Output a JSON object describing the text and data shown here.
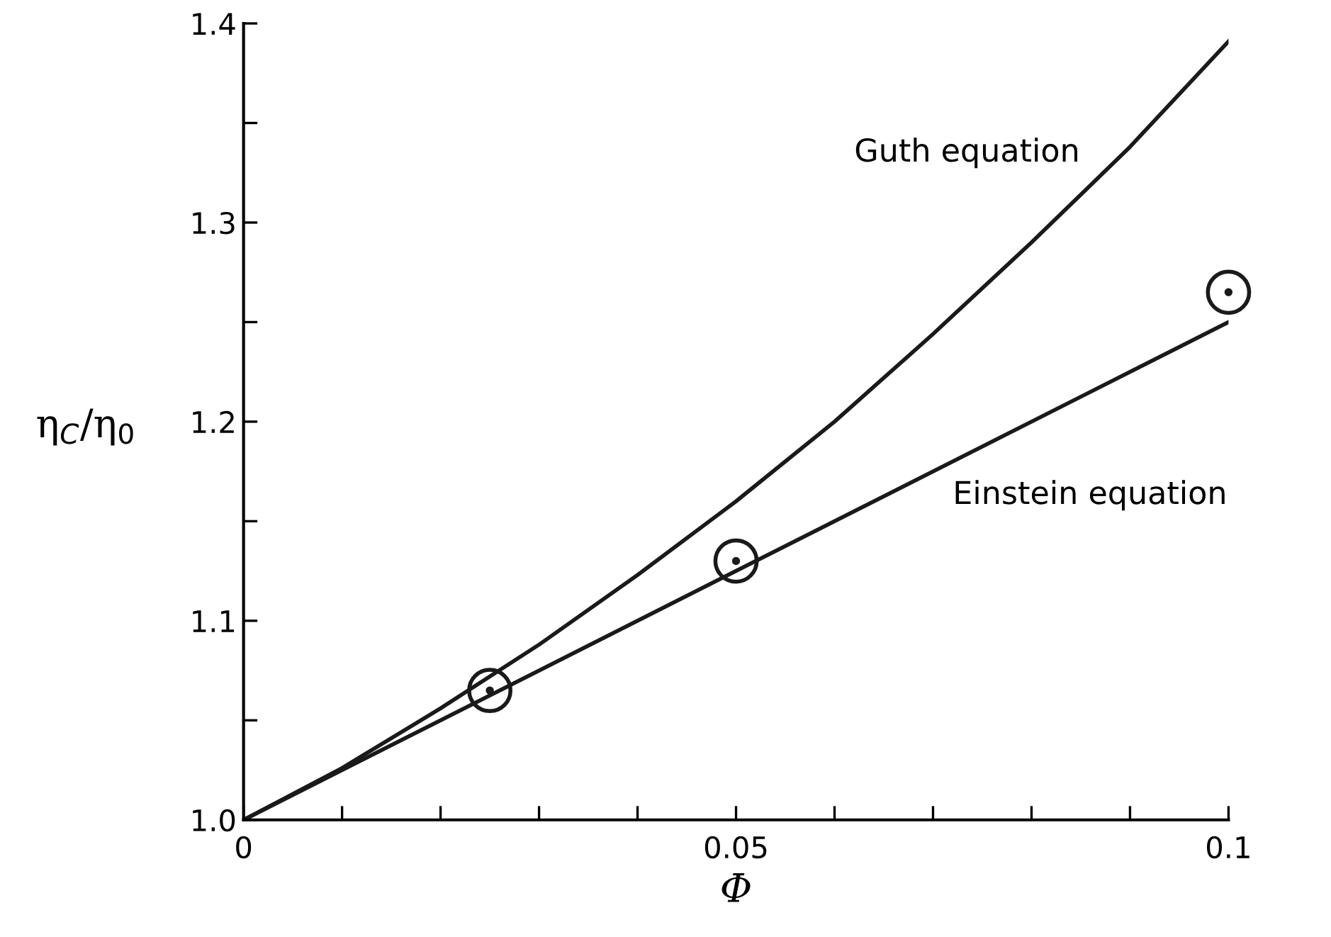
{
  "chart_data": {
    "type": "line",
    "xlabel": "Φ",
    "ylabel": "η$_{C}$/η$_{0}$",
    "xlim": [
      0,
      0.1
    ],
    "ylim": [
      1.0,
      1.4
    ],
    "xticks": [
      0,
      {
        "value": 0.01,
        "label": null
      },
      {
        "value": 0.02,
        "label": null
      },
      {
        "value": 0.03,
        "label": null
      },
      {
        "value": 0.04,
        "label": null
      },
      0.05,
      {
        "value": 0.06,
        "label": null
      },
      {
        "value": 0.07,
        "label": null
      },
      {
        "value": 0.08,
        "label": null
      },
      {
        "value": 0.09,
        "label": null
      },
      0.1
    ],
    "yticks": [
      {
        "value": 1.0,
        "label": "1.0"
      },
      {
        "value": 1.05,
        "label": null
      },
      1.1,
      {
        "value": 1.15,
        "label": null
      },
      1.2,
      {
        "value": 1.25,
        "label": null
      },
      1.3,
      {
        "value": 1.35,
        "label": null
      },
      1.4
    ],
    "grid": false,
    "legend": false,
    "series": [
      {
        "color": "#1a1a1a",
        "x": [
          0,
          0.01,
          0.02,
          0.03,
          0.04,
          0.05,
          0.06,
          0.07,
          0.08,
          0.09,
          0.1
        ],
        "values": [
          1.0,
          1.026,
          1.056,
          1.088,
          1.123,
          1.16,
          1.2,
          1.244,
          1.29,
          1.338,
          1.391
        ]
      },
      {
        "color": "#1a1a1a",
        "x": [
          0,
          0.1
        ],
        "values": [
          1.0,
          1.25
        ]
      },
      {
        "type": "scatter",
        "marker": "circle",
        "color": "#1a1a1a",
        "x": [
          0.025,
          0.05,
          0.1
        ],
        "values": [
          1.065,
          1.13,
          1.265
        ]
      }
    ],
    "annotations": [
      "Guth equation",
      "Einstein equation"
    ]
  }
}
